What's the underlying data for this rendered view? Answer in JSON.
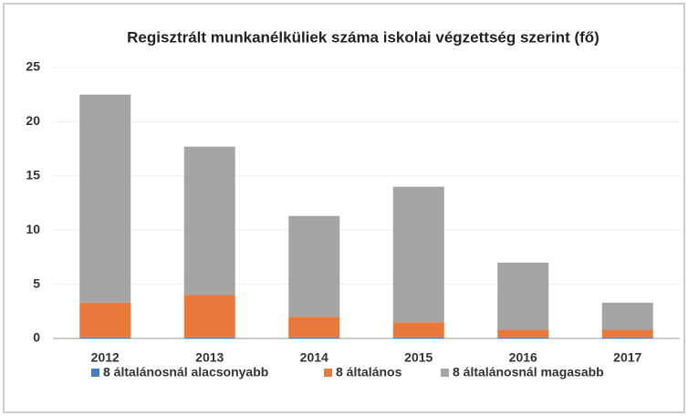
{
  "chart_data": {
    "type": "stacked_bar",
    "title": "Regisztrált munkanélküliek száma iskolai végzettség szerint (fő)",
    "categories": [
      "2012",
      "2013",
      "2014",
      "2015",
      "2016",
      "2017"
    ],
    "series": [
      {
        "name": "8 általánosnál alacsonyabb",
        "color": "#4a7ebb",
        "values": [
          0.1,
          0.1,
          0.1,
          0.1,
          0.1,
          0.1
        ]
      },
      {
        "name": "8 általános",
        "color": "#e8793b",
        "values": [
          3.2,
          3.9,
          1.9,
          1.4,
          0.7,
          0.7
        ]
      },
      {
        "name": "8 általánosnál magasabb",
        "color": "#a5a5a5",
        "values": [
          19.2,
          13.7,
          9.3,
          12.5,
          6.2,
          2.5
        ]
      }
    ],
    "ylim": [
      0,
      25
    ],
    "yticks": [
      0,
      5,
      10,
      15,
      20,
      25
    ],
    "grid": true,
    "legend": "bottom"
  }
}
